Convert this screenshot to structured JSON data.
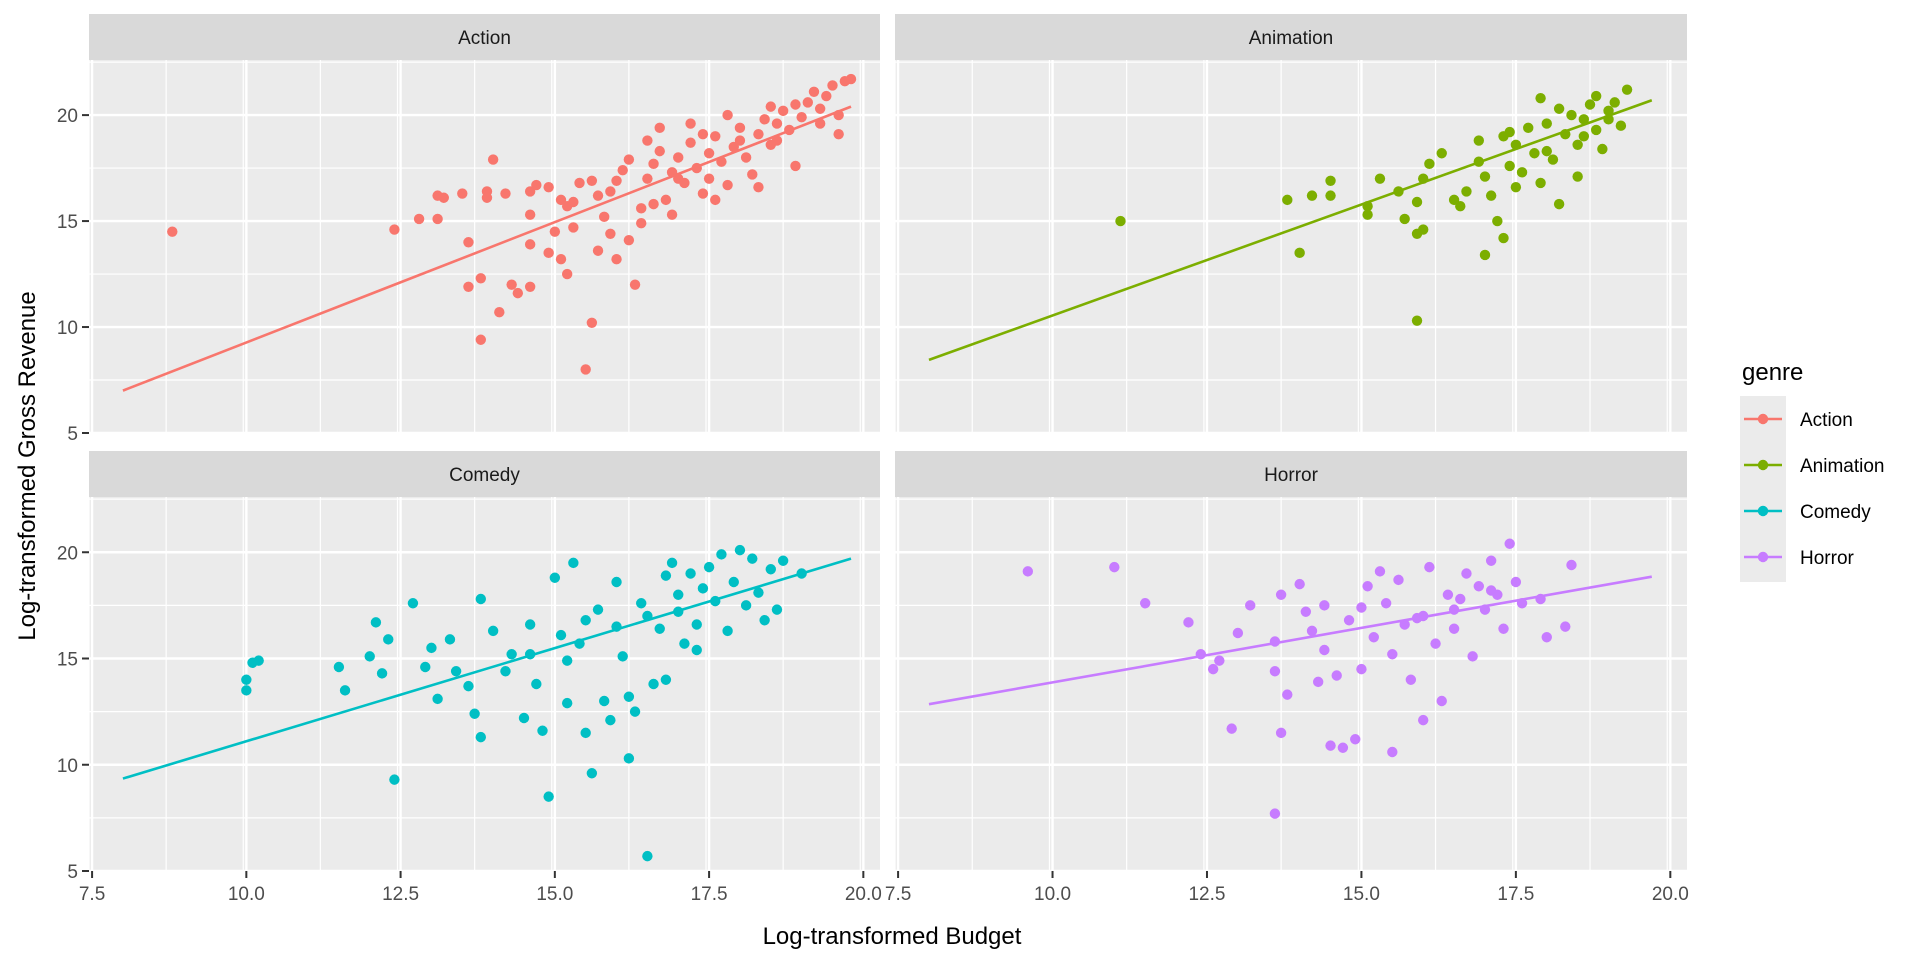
{
  "chart_data": {
    "type": "scatter",
    "facet_layout": "2x2 grid",
    "xlabel": "Log-transformed Budget",
    "ylabel": "Log-transformed Gross Revenue",
    "xlim": [
      7.45,
      20.27
    ],
    "ylim": [
      5,
      22.6
    ],
    "x_ticks": [
      7.5,
      10.0,
      12.5,
      15.0,
      17.5,
      20.0
    ],
    "x_tick_labels": [
      "7.5",
      "10.0",
      "12.5",
      "15.0",
      "17.5",
      "20.0"
    ],
    "y_ticks": [
      5,
      10,
      15,
      20
    ],
    "y_tick_labels": [
      "5",
      "10",
      "15",
      "20"
    ],
    "grid": true,
    "legend": {
      "title": "genre",
      "position": "right"
    },
    "smooth": "linear fit per genre",
    "panels": [
      {
        "name": "Action",
        "color": "#F8766D",
        "fit_line": [
          [
            8.0,
            7.0
          ],
          [
            19.8,
            20.4
          ]
        ],
        "points": [
          [
            8.8,
            14.5
          ],
          [
            12.4,
            14.6
          ],
          [
            12.8,
            15.1
          ],
          [
            13.1,
            16.2
          ],
          [
            13.2,
            16.1
          ],
          [
            13.1,
            15.1
          ],
          [
            13.5,
            16.3
          ],
          [
            13.9,
            16.4
          ],
          [
            13.6,
            14.0
          ],
          [
            13.8,
            12.3
          ],
          [
            13.6,
            11.9
          ],
          [
            13.8,
            9.4
          ],
          [
            13.9,
            16.1
          ],
          [
            14.0,
            17.9
          ],
          [
            14.2,
            16.3
          ],
          [
            14.3,
            12.0
          ],
          [
            14.4,
            11.6
          ],
          [
            14.1,
            10.7
          ],
          [
            14.6,
            16.4
          ],
          [
            14.6,
            15.3
          ],
          [
            14.6,
            13.9
          ],
          [
            14.6,
            11.9
          ],
          [
            14.7,
            16.7
          ],
          [
            14.9,
            16.6
          ],
          [
            14.9,
            13.5
          ],
          [
            15.0,
            14.5
          ],
          [
            15.1,
            16.0
          ],
          [
            15.1,
            13.2
          ],
          [
            15.2,
            12.5
          ],
          [
            15.2,
            15.7
          ],
          [
            15.3,
            14.7
          ],
          [
            15.4,
            16.8
          ],
          [
            15.5,
            8.0
          ],
          [
            15.6,
            10.2
          ],
          [
            15.6,
            16.9
          ],
          [
            15.7,
            13.6
          ],
          [
            15.8,
            15.2
          ],
          [
            15.9,
            14.4
          ],
          [
            16.0,
            16.9
          ],
          [
            16.0,
            13.2
          ],
          [
            16.1,
            17.4
          ],
          [
            16.2,
            14.1
          ],
          [
            16.3,
            12.0
          ],
          [
            16.4,
            14.9
          ],
          [
            16.5,
            18.8
          ],
          [
            16.6,
            17.7
          ],
          [
            16.7,
            18.3
          ],
          [
            16.8,
            16.0
          ],
          [
            16.9,
            17.3
          ],
          [
            17.0,
            18.0
          ],
          [
            17.1,
            16.8
          ],
          [
            17.2,
            18.7
          ],
          [
            17.3,
            17.5
          ],
          [
            17.4,
            16.3
          ],
          [
            17.5,
            18.2
          ],
          [
            17.6,
            19.0
          ],
          [
            17.7,
            17.8
          ],
          [
            17.8,
            16.7
          ],
          [
            17.9,
            18.5
          ],
          [
            18.0,
            19.4
          ],
          [
            18.1,
            18.0
          ],
          [
            18.2,
            17.2
          ],
          [
            18.3,
            19.1
          ],
          [
            18.4,
            19.8
          ],
          [
            18.5,
            18.6
          ],
          [
            18.6,
            19.6
          ],
          [
            18.7,
            20.2
          ],
          [
            18.8,
            19.3
          ],
          [
            18.9,
            20.5
          ],
          [
            19.0,
            19.9
          ],
          [
            19.1,
            20.6
          ],
          [
            19.2,
            21.1
          ],
          [
            19.3,
            20.3
          ],
          [
            19.4,
            20.9
          ],
          [
            19.5,
            21.4
          ],
          [
            19.6,
            20.0
          ],
          [
            19.7,
            21.6
          ],
          [
            19.8,
            21.7
          ],
          [
            19.6,
            19.1
          ],
          [
            18.9,
            17.6
          ],
          [
            18.3,
            16.6
          ],
          [
            17.6,
            16.0
          ],
          [
            16.9,
            15.3
          ],
          [
            16.4,
            15.6
          ],
          [
            15.9,
            16.4
          ],
          [
            16.7,
            19.4
          ],
          [
            17.2,
            19.6
          ],
          [
            17.8,
            20.0
          ],
          [
            18.5,
            20.4
          ],
          [
            19.3,
            19.6
          ],
          [
            16.2,
            17.9
          ],
          [
            16.6,
            15.8
          ],
          [
            17.0,
            17.0
          ],
          [
            17.5,
            17.0
          ],
          [
            18.0,
            18.8
          ],
          [
            18.6,
            18.8
          ],
          [
            17.4,
            19.1
          ],
          [
            16.5,
            17.0
          ],
          [
            15.7,
            16.2
          ],
          [
            15.3,
            15.9
          ]
        ]
      },
      {
        "name": "Animation",
        "color": "#7CAE00",
        "fit_line": [
          [
            8.0,
            8.45
          ],
          [
            19.7,
            20.7
          ]
        ],
        "points": [
          [
            11.1,
            15.0
          ],
          [
            13.8,
            16.0
          ],
          [
            14.0,
            13.5
          ],
          [
            14.2,
            16.2
          ],
          [
            14.5,
            16.9
          ],
          [
            14.5,
            16.2
          ],
          [
            15.1,
            15.7
          ],
          [
            15.1,
            15.3
          ],
          [
            15.3,
            17.0
          ],
          [
            15.6,
            16.4
          ],
          [
            15.7,
            15.1
          ],
          [
            15.9,
            15.9
          ],
          [
            15.9,
            14.4
          ],
          [
            15.9,
            10.3
          ],
          [
            16.0,
            17.0
          ],
          [
            16.0,
            14.6
          ],
          [
            16.1,
            17.7
          ],
          [
            16.3,
            18.2
          ],
          [
            16.5,
            16.0
          ],
          [
            16.6,
            15.7
          ],
          [
            16.7,
            16.4
          ],
          [
            16.9,
            17.8
          ],
          [
            16.9,
            18.8
          ],
          [
            17.0,
            17.1
          ],
          [
            17.0,
            13.4
          ],
          [
            17.1,
            16.2
          ],
          [
            17.2,
            15.0
          ],
          [
            17.3,
            19.0
          ],
          [
            17.3,
            14.2
          ],
          [
            17.4,
            17.6
          ],
          [
            17.5,
            18.6
          ],
          [
            17.5,
            16.6
          ],
          [
            17.6,
            17.3
          ],
          [
            17.7,
            19.4
          ],
          [
            17.8,
            18.2
          ],
          [
            17.9,
            20.8
          ],
          [
            17.9,
            16.8
          ],
          [
            18.0,
            19.6
          ],
          [
            18.1,
            17.9
          ],
          [
            18.2,
            20.3
          ],
          [
            18.2,
            15.8
          ],
          [
            18.3,
            19.1
          ],
          [
            18.4,
            20.0
          ],
          [
            18.5,
            18.6
          ],
          [
            18.5,
            17.1
          ],
          [
            18.6,
            19.8
          ],
          [
            18.7,
            20.5
          ],
          [
            18.8,
            19.3
          ],
          [
            18.8,
            20.9
          ],
          [
            18.9,
            18.4
          ],
          [
            19.0,
            20.2
          ],
          [
            19.1,
            20.6
          ],
          [
            19.2,
            19.5
          ],
          [
            19.3,
            21.2
          ],
          [
            18.0,
            18.3
          ],
          [
            17.4,
            19.2
          ],
          [
            18.6,
            19.0
          ],
          [
            19.0,
            19.8
          ]
        ]
      },
      {
        "name": "Comedy",
        "color": "#00BFC4",
        "fit_line": [
          [
            8.0,
            9.35
          ],
          [
            19.8,
            19.7
          ]
        ],
        "points": [
          [
            10.0,
            14.0
          ],
          [
            10.0,
            13.5
          ],
          [
            10.2,
            14.9
          ],
          [
            10.1,
            14.8
          ],
          [
            11.5,
            14.6
          ],
          [
            11.6,
            13.5
          ],
          [
            12.0,
            15.1
          ],
          [
            12.1,
            16.7
          ],
          [
            12.2,
            14.3
          ],
          [
            12.4,
            9.3
          ],
          [
            12.3,
            15.9
          ],
          [
            12.7,
            17.6
          ],
          [
            12.9,
            14.6
          ],
          [
            13.0,
            15.5
          ],
          [
            13.1,
            13.1
          ],
          [
            13.3,
            15.9
          ],
          [
            13.4,
            14.4
          ],
          [
            13.6,
            13.7
          ],
          [
            13.7,
            12.4
          ],
          [
            13.8,
            17.8
          ],
          [
            13.8,
            11.3
          ],
          [
            14.0,
            16.3
          ],
          [
            14.2,
            14.4
          ],
          [
            14.3,
            15.2
          ],
          [
            14.5,
            12.2
          ],
          [
            14.6,
            16.6
          ],
          [
            14.7,
            13.8
          ],
          [
            14.8,
            11.6
          ],
          [
            14.9,
            8.5
          ],
          [
            15.0,
            18.8
          ],
          [
            15.1,
            16.1
          ],
          [
            15.2,
            12.9
          ],
          [
            15.3,
            19.5
          ],
          [
            15.4,
            15.7
          ],
          [
            15.5,
            11.5
          ],
          [
            15.6,
            9.6
          ],
          [
            15.7,
            17.3
          ],
          [
            15.8,
            13.0
          ],
          [
            15.9,
            12.1
          ],
          [
            16.0,
            18.6
          ],
          [
            16.1,
            15.1
          ],
          [
            16.2,
            10.3
          ],
          [
            16.3,
            12.5
          ],
          [
            16.4,
            17.6
          ],
          [
            16.5,
            5.7
          ],
          [
            16.6,
            13.8
          ],
          [
            16.7,
            16.4
          ],
          [
            16.8,
            18.9
          ],
          [
            16.9,
            19.5
          ],
          [
            17.0,
            17.2
          ],
          [
            17.1,
            15.7
          ],
          [
            17.2,
            19.0
          ],
          [
            17.3,
            16.6
          ],
          [
            17.4,
            18.3
          ],
          [
            17.5,
            19.3
          ],
          [
            17.6,
            17.7
          ],
          [
            17.7,
            19.9
          ],
          [
            17.8,
            16.3
          ],
          [
            17.9,
            18.6
          ],
          [
            18.0,
            20.1
          ],
          [
            18.1,
            17.5
          ],
          [
            18.2,
            19.7
          ],
          [
            18.3,
            18.1
          ],
          [
            18.4,
            16.8
          ],
          [
            18.5,
            19.2
          ],
          [
            18.6,
            17.3
          ],
          [
            18.7,
            19.6
          ],
          [
            19.0,
            19.0
          ],
          [
            16.0,
            16.5
          ],
          [
            16.5,
            17.0
          ],
          [
            15.5,
            16.8
          ],
          [
            17.0,
            18.0
          ],
          [
            15.2,
            14.9
          ],
          [
            14.6,
            15.2
          ],
          [
            16.8,
            14.0
          ],
          [
            17.3,
            15.4
          ],
          [
            16.2,
            13.2
          ]
        ]
      },
      {
        "name": "Horror",
        "color": "#C77CFF",
        "fit_line": [
          [
            8.0,
            12.85
          ],
          [
            19.7,
            18.85
          ]
        ],
        "points": [
          [
            9.6,
            19.1
          ],
          [
            11.0,
            19.3
          ],
          [
            11.5,
            17.6
          ],
          [
            12.2,
            16.7
          ],
          [
            12.4,
            15.2
          ],
          [
            12.6,
            14.5
          ],
          [
            12.7,
            14.9
          ],
          [
            12.9,
            11.7
          ],
          [
            13.0,
            16.2
          ],
          [
            13.2,
            17.5
          ],
          [
            13.6,
            15.8
          ],
          [
            13.6,
            14.4
          ],
          [
            13.6,
            7.7
          ],
          [
            13.7,
            11.5
          ],
          [
            13.7,
            18.0
          ],
          [
            13.8,
            13.3
          ],
          [
            14.0,
            18.5
          ],
          [
            14.1,
            17.2
          ],
          [
            14.2,
            16.3
          ],
          [
            14.3,
            13.9
          ],
          [
            14.4,
            17.5
          ],
          [
            14.4,
            15.4
          ],
          [
            14.5,
            10.9
          ],
          [
            14.6,
            14.2
          ],
          [
            14.7,
            10.8
          ],
          [
            14.8,
            16.8
          ],
          [
            14.9,
            11.2
          ],
          [
            15.0,
            17.4
          ],
          [
            15.0,
            14.5
          ],
          [
            15.1,
            18.4
          ],
          [
            15.2,
            16.0
          ],
          [
            15.3,
            19.1
          ],
          [
            15.4,
            17.6
          ],
          [
            15.5,
            15.2
          ],
          [
            15.5,
            10.6
          ],
          [
            15.6,
            18.7
          ],
          [
            15.7,
            16.6
          ],
          [
            15.8,
            14.0
          ],
          [
            16.0,
            17.0
          ],
          [
            16.0,
            12.1
          ],
          [
            16.1,
            19.3
          ],
          [
            16.2,
            15.7
          ],
          [
            16.3,
            13.0
          ],
          [
            16.4,
            18.0
          ],
          [
            16.5,
            16.4
          ],
          [
            16.6,
            17.8
          ],
          [
            16.7,
            19.0
          ],
          [
            16.8,
            15.1
          ],
          [
            16.9,
            18.4
          ],
          [
            17.0,
            17.3
          ],
          [
            17.1,
            19.6
          ],
          [
            17.2,
            18.0
          ],
          [
            17.3,
            16.4
          ],
          [
            17.4,
            20.4
          ],
          [
            17.5,
            18.6
          ],
          [
            17.6,
            17.6
          ],
          [
            17.9,
            17.8
          ],
          [
            18.0,
            16.0
          ],
          [
            18.3,
            16.5
          ],
          [
            18.4,
            19.4
          ],
          [
            16.5,
            17.3
          ],
          [
            15.9,
            16.9
          ],
          [
            17.1,
            18.2
          ]
        ]
      }
    ]
  }
}
